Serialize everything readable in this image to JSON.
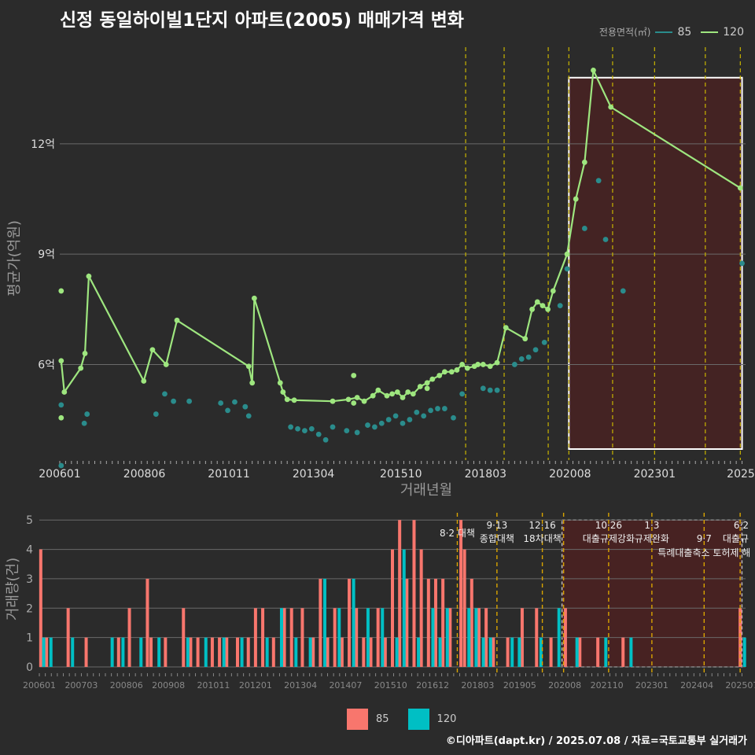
{
  "title": "신정 동일하이빌1단지 아파트(2005) 매매가격 변화",
  "legend_top": {
    "label": "전용면적(㎡)",
    "items": [
      {
        "name": "85",
        "color": "#2a8c8c"
      },
      {
        "name": "120",
        "color": "#9ee67f"
      }
    ]
  },
  "legend_bottom": {
    "items": [
      {
        "name": "85",
        "color": "#f8766d"
      },
      {
        "name": "120",
        "color": "#00bfc4"
      }
    ]
  },
  "footer": "©디아파트(dapt.kr) / 2025.07.08 / 자료=국토교통부 실거래가",
  "chart_data": [
    {
      "type": "line",
      "title": "신정 동일하이빌1단지 아파트(2005) 매매가격 변화",
      "xlabel": "거래년월",
      "ylabel": "평균가(억원)",
      "x_ticks": [
        "200601",
        "200806",
        "201011",
        "201304",
        "201510",
        "201803",
        "202008",
        "202301",
        "2025"
      ],
      "y_ticks": [
        "6억",
        "9억",
        "12억"
      ],
      "y_tick_values": [
        6,
        9,
        12
      ],
      "ylim": [
        3.4,
        14.8
      ],
      "xlim": [
        2006.0,
        2025.6
      ],
      "highlight_range": [
        2020.55,
        2025.5
      ],
      "policy_lines": [
        2017.6,
        2018.7,
        2019.96,
        2020.55,
        2021.8,
        2023.0,
        2024.45,
        2025.45
      ],
      "series": [
        {
          "name": "120",
          "color": "#9ee67f",
          "x": [
            2006.04,
            2006.13,
            2006.6,
            2006.72,
            2006.83,
            2008.4,
            2008.65,
            2009.04,
            2009.35,
            2011.4,
            2011.5,
            2011.56,
            2012.3,
            2012.38,
            2012.5,
            2012.7,
            2013.8,
            2014.25,
            2014.5,
            2014.7,
            2014.95,
            2015.1,
            2015.35,
            2015.5,
            2015.65,
            2015.8,
            2015.95,
            2016.1,
            2016.3,
            2016.5,
            2016.65,
            2016.85,
            2017.0,
            2017.2,
            2017.35,
            2017.5,
            2017.65,
            2017.85,
            2017.95,
            2018.1,
            2018.3,
            2018.5,
            2018.75,
            2019.3,
            2019.5,
            2019.65,
            2019.8,
            2019.95,
            2020.1,
            2020.5,
            2020.75,
            2021.0,
            2021.25,
            2021.75,
            2025.45
          ],
          "y": [
            6.1,
            5.25,
            5.9,
            6.3,
            8.4,
            5.55,
            6.4,
            6.0,
            7.2,
            5.95,
            5.5,
            7.8,
            5.5,
            5.25,
            5.05,
            5.03,
            5.0,
            5.05,
            5.1,
            5.0,
            5.15,
            5.3,
            5.15,
            5.2,
            5.25,
            5.1,
            5.25,
            5.2,
            5.4,
            5.5,
            5.6,
            5.7,
            5.8,
            5.8,
            5.85,
            6.0,
            5.9,
            5.95,
            6.0,
            6.0,
            5.95,
            6.05,
            7.0,
            6.7,
            7.5,
            7.7,
            7.6,
            7.5,
            8.0,
            9.0,
            10.5,
            11.5,
            14.0,
            13.0,
            10.8
          ],
          "extra_points_x": [
            2006.04,
            2006.04,
            2014.4,
            2014.4,
            2016.5
          ],
          "extra_points_y": [
            8.0,
            4.55,
            5.7,
            4.95,
            5.35
          ]
        },
        {
          "name": "85",
          "color": "#2a8c8c",
          "x": [
            2006.04,
            2006.04,
            2006.7,
            2006.78,
            2008.75,
            2009.0,
            2009.25,
            2009.7,
            2010.6,
            2010.8,
            2011.0,
            2011.3,
            2011.4,
            2012.6,
            2012.8,
            2013.0,
            2013.2,
            2013.4,
            2013.6,
            2013.8,
            2014.2,
            2014.5,
            2014.8,
            2015.0,
            2015.2,
            2015.4,
            2015.6,
            2015.8,
            2016.0,
            2016.2,
            2016.4,
            2016.6,
            2016.8,
            2017.0,
            2017.25,
            2017.5,
            2018.1,
            2018.3,
            2018.5,
            2019.0,
            2019.2,
            2019.4,
            2019.6,
            2019.85,
            2020.3,
            2020.5,
            2021.0,
            2021.4,
            2021.6,
            2022.1,
            2025.5
          ],
          "y": [
            4.9,
            3.25,
            4.4,
            4.65,
            4.65,
            5.2,
            5.0,
            5.0,
            4.95,
            4.75,
            4.98,
            4.85,
            4.6,
            4.3,
            4.25,
            4.2,
            4.25,
            4.1,
            3.95,
            4.3,
            4.2,
            4.15,
            4.35,
            4.3,
            4.4,
            4.5,
            4.6,
            4.4,
            4.5,
            4.7,
            4.6,
            4.75,
            4.8,
            4.8,
            4.55,
            5.2,
            5.35,
            5.3,
            5.3,
            6.0,
            6.15,
            6.2,
            6.4,
            6.6,
            7.6,
            8.6,
            9.7,
            11.0,
            9.4,
            8.0,
            8.75
          ]
        }
      ]
    },
    {
      "type": "bar",
      "xlabel": "",
      "ylabel": "거래량(건)",
      "x_ticks": [
        "200601",
        "200703",
        "200806",
        "200908",
        "201011",
        "201201",
        "201304",
        "201407",
        "201510",
        "201612",
        "201803",
        "201905",
        "202008",
        "202110",
        "202301",
        "202404",
        "202507"
      ],
      "y_ticks": [
        0,
        1,
        2,
        3,
        4,
        5
      ],
      "ylim": [
        0,
        5.3
      ],
      "xlim": [
        2006.0,
        2025.6
      ],
      "highlight_range": [
        2020.55,
        2025.5
      ],
      "policy_lines": [
        2017.6,
        2018.7,
        2019.96,
        2020.55,
        2021.8,
        2023.0,
        2024.45,
        2025.45
      ],
      "annotations": [
        {
          "x": 2017.6,
          "level": 0,
          "lines": [
            "8·2 대책"
          ]
        },
        {
          "x": 2018.7,
          "level": 1,
          "lines": [
            "9·13",
            "종합대책"
          ]
        },
        {
          "x": 2019.96,
          "level": 1,
          "lines": [
            "12·16",
            "18차대책"
          ]
        },
        {
          "x": 2021.8,
          "level": 1,
          "lines": [
            "10·26",
            "대출규제강화"
          ]
        },
        {
          "x": 2023.0,
          "level": 1,
          "lines": [
            "1·3",
            "규제완화"
          ]
        },
        {
          "x": 2024.45,
          "level": 2,
          "lines": [
            "9·7",
            "특례대출축소 토허제 해"
          ]
        },
        {
          "x": 2025.45,
          "level": 1,
          "lines": [
            "6·2",
            "대출규"
          ]
        }
      ],
      "series": [
        {
          "name": "85",
          "color": "#f8766d",
          "x": [
            2006.04,
            2006.12,
            2006.2,
            2006.8,
            2007.3,
            2008.2,
            2008.5,
            2009.0,
            2009.1,
            2009.5,
            2010.0,
            2010.2,
            2010.4,
            2010.8,
            2011.0,
            2011.2,
            2011.5,
            2011.8,
            2012.0,
            2012.2,
            2012.5,
            2012.8,
            2013.0,
            2013.3,
            2013.6,
            2013.8,
            2014.0,
            2014.2,
            2014.4,
            2014.6,
            2014.8,
            2015.0,
            2015.2,
            2015.4,
            2015.6,
            2015.8,
            2016.0,
            2016.2,
            2016.4,
            2016.6,
            2016.8,
            2017.0,
            2017.2,
            2017.4,
            2017.7,
            2017.8,
            2018.0,
            2018.2,
            2018.4,
            2018.6,
            2019.0,
            2019.4,
            2019.8,
            2020.2,
            2020.6,
            2021.0,
            2021.5,
            2022.2,
            2025.45
          ],
          "y": [
            4,
            1,
            1,
            2,
            1,
            1,
            2,
            3,
            1,
            1,
            2,
            1,
            1,
            1,
            1,
            1,
            1,
            1,
            2,
            2,
            1,
            2,
            2,
            2,
            1,
            3,
            1,
            2,
            1,
            3,
            2,
            1,
            1,
            2,
            1,
            4,
            5,
            3,
            5,
            4,
            3,
            3,
            3,
            2,
            5,
            4,
            3,
            2,
            2,
            1,
            1,
            2,
            2,
            1,
            2,
            1,
            1,
            1,
            2
          ]
        },
        {
          "name": "120",
          "color": "#00bfc4",
          "x": [
            2006.1,
            2006.3,
            2006.9,
            2008.0,
            2008.3,
            2008.8,
            2009.3,
            2010.1,
            2010.6,
            2011.1,
            2011.6,
            2012.3,
            2012.7,
            2013.1,
            2013.5,
            2013.9,
            2014.3,
            2014.7,
            2015.1,
            2015.5,
            2015.9,
            2016.1,
            2016.5,
            2016.9,
            2017.1,
            2017.3,
            2017.9,
            2018.1,
            2018.3,
            2018.5,
            2019.1,
            2019.3,
            2019.9,
            2020.4,
            2020.9,
            2021.7,
            2022.4,
            2025.55
          ],
          "y": [
            1,
            1,
            1,
            1,
            1,
            1,
            1,
            1,
            1,
            1,
            1,
            1,
            2,
            1,
            1,
            3,
            2,
            3,
            2,
            2,
            1,
            4,
            1,
            2,
            1,
            2,
            2,
            2,
            1,
            1,
            1,
            1,
            1,
            2,
            1,
            1,
            1,
            1
          ]
        }
      ]
    }
  ]
}
